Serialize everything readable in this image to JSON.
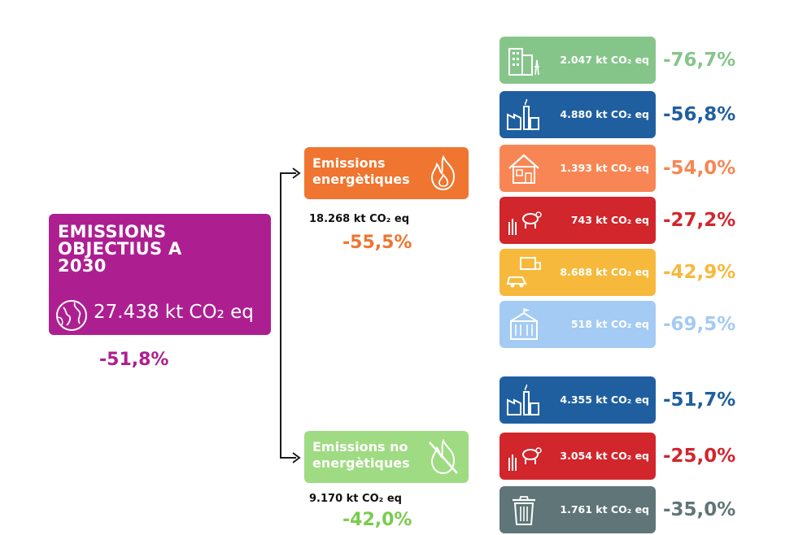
{
  "main": {
    "title_lines": [
      "EMISSIONS",
      "OBJECTIUS A",
      "2030"
    ],
    "value": "27.438 kt CO₂ eq",
    "pct": "-51,8%",
    "color": "#ad1f91",
    "icon": "globe-icon"
  },
  "categories": [
    {
      "label_lines": [
        "Emissions",
        "energètiques"
      ],
      "value": "18.268 kt CO₂ eq",
      "pct": "-55,5%",
      "color": "#ef7530",
      "icon": "flame-icon"
    },
    {
      "label_lines": [
        "Emissions no",
        "energètiques"
      ],
      "value": "9.170 kt CO₂ eq",
      "pct": "-42,0%",
      "color": "#9fdb82",
      "pct_color": "#7acb4e",
      "icon": "crossed-flame-icon"
    }
  ],
  "sectors": [
    {
      "value": "2.047 kt CO₂ eq",
      "pct": "-76,7%",
      "color": "#86c58a",
      "icon": "buildings-icon"
    },
    {
      "value": "4.880 kt CO₂ eq",
      "pct": "-56,8%",
      "color": "#1f5fa0",
      "icon": "factory-icon"
    },
    {
      "value": "1.393 kt CO₂ eq",
      "pct": "-54,0%",
      "color": "#f78654",
      "icon": "house-icon"
    },
    {
      "value": "743 kt CO₂ eq",
      "pct": "-27,2%",
      "color": "#d1262c",
      "icon": "farm-icon"
    },
    {
      "value": "8.688 kt CO₂ eq",
      "pct": "-42,9%",
      "color": "#f7b93c",
      "icon": "transport-icon"
    },
    {
      "value": "518 kt CO₂ eq",
      "pct": "-69,5%",
      "color": "#a3cbf3",
      "icon": "public-building-icon"
    },
    {
      "value": "4.355 kt CO₂ eq",
      "pct": "-51,7%",
      "color": "#1f5fa0",
      "icon": "factory-icon"
    },
    {
      "value": "3.054 kt CO₂ eq",
      "pct": "-25,0%",
      "color": "#d1262c",
      "icon": "farm-icon"
    },
    {
      "value": "1.761 kt CO₂ eq",
      "pct": "-35,0%",
      "color": "#5f7577",
      "icon": "trash-icon"
    }
  ]
}
